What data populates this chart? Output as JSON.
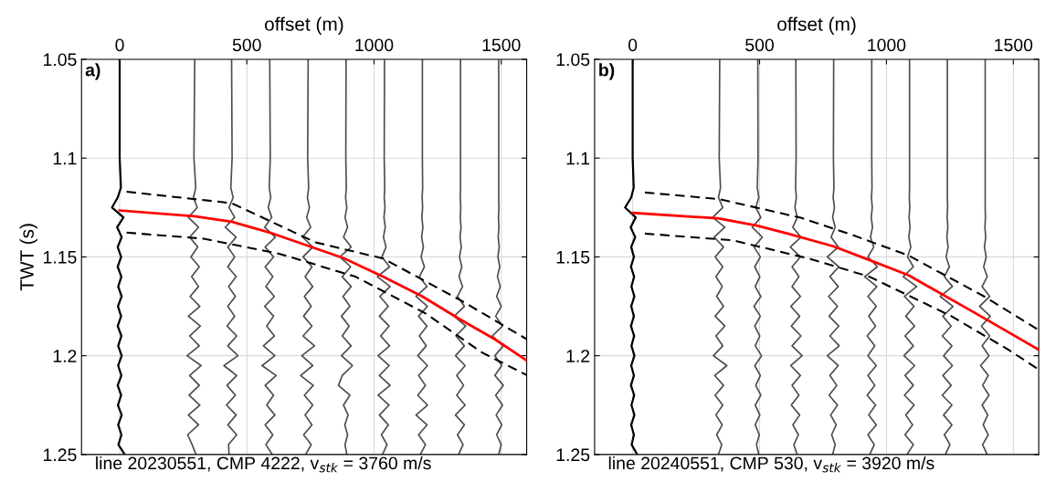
{
  "chart_data": [
    {
      "type": "line",
      "xlabel": "offset (m)",
      "ylabel": "TWT (s)",
      "xlim": [
        -150,
        1600
      ],
      "xticks": [
        0,
        500,
        1000,
        1500
      ],
      "ylim": [
        1.25,
        1.05
      ],
      "yticks": [
        1.05,
        1.1,
        1.15,
        1.2,
        1.25
      ],
      "grid": true,
      "marker": "none",
      "annotations": [
        "a)",
        "line 20230551, CMP 4222, v$_{stk}$ = 3760 m/s"
      ],
      "series": [
        {
          "color": "#000000",
          "x": [
            0,
            0,
            5,
            -8,
            -30,
            15,
            -10,
            8,
            -8,
            6,
            -8,
            7,
            -6,
            8,
            -7,
            6,
            -8,
            7,
            -6,
            8,
            -6,
            7,
            -8,
            6,
            -7,
            8,
            -6,
            7,
            -5,
            20
          ],
          "values": [
            1.05,
            1.1,
            1.115,
            1.12,
            1.125,
            1.13,
            1.135,
            1.14,
            1.145,
            1.15,
            1.155,
            1.16,
            1.165,
            1.17,
            1.175,
            1.18,
            1.185,
            1.19,
            1.195,
            1.2,
            1.205,
            1.21,
            1.215,
            1.22,
            1.225,
            1.23,
            1.235,
            1.24,
            1.245,
            1.25
          ]
        },
        {
          "color": "#4d4d4d",
          "x": [
            295,
            292,
            299,
            290,
            305,
            270,
            310,
            275,
            307,
            280,
            313,
            283,
            310,
            277,
            315,
            270,
            317,
            275,
            313,
            265,
            320,
            275,
            313,
            273,
            315,
            270,
            310,
            267,
            285,
            300
          ],
          "values": [
            1.05,
            1.1,
            1.115,
            1.12,
            1.125,
            1.13,
            1.135,
            1.14,
            1.145,
            1.15,
            1.155,
            1.16,
            1.165,
            1.17,
            1.175,
            1.18,
            1.185,
            1.19,
            1.195,
            1.2,
            1.205,
            1.21,
            1.215,
            1.22,
            1.225,
            1.23,
            1.235,
            1.24,
            1.245,
            1.25
          ]
        },
        {
          "color": "#4d4d4d",
          "x": [
            440,
            442,
            437,
            446,
            430,
            452,
            415,
            458,
            425,
            452,
            425,
            458,
            428,
            455,
            425,
            452,
            422,
            460,
            425,
            465,
            410,
            460,
            422,
            455,
            420,
            458,
            425,
            460,
            428,
            430
          ],
          "values": [
            1.05,
            1.1,
            1.115,
            1.12,
            1.125,
            1.13,
            1.135,
            1.14,
            1.145,
            1.15,
            1.155,
            1.16,
            1.165,
            1.17,
            1.175,
            1.18,
            1.185,
            1.19,
            1.195,
            1.2,
            1.205,
            1.21,
            1.215,
            1.22,
            1.225,
            1.23,
            1.235,
            1.24,
            1.245,
            1.25
          ]
        },
        {
          "color": "#4d4d4d",
          "x": [
            590,
            592,
            588,
            594,
            584,
            598,
            570,
            612,
            572,
            605,
            572,
            602,
            575,
            608,
            570,
            605,
            578,
            608,
            565,
            610,
            560,
            615,
            572,
            605,
            578,
            610,
            572,
            602,
            575,
            600
          ],
          "values": [
            1.05,
            1.1,
            1.115,
            1.12,
            1.125,
            1.13,
            1.135,
            1.14,
            1.145,
            1.15,
            1.155,
            1.16,
            1.165,
            1.17,
            1.175,
            1.18,
            1.185,
            1.19,
            1.195,
            1.2,
            1.205,
            1.21,
            1.215,
            1.22,
            1.225,
            1.23,
            1.235,
            1.24,
            1.245,
            1.25
          ]
        },
        {
          "color": "#4d4d4d",
          "x": [
            741,
            739,
            743,
            738,
            746,
            735,
            751,
            719,
            759,
            721,
            756,
            729,
            759,
            726,
            753,
            723,
            756,
            721,
            766,
            716,
            759,
            711,
            761,
            726,
            759,
            729,
            756,
            723,
            753,
            731
          ],
          "values": [
            1.05,
            1.1,
            1.115,
            1.12,
            1.125,
            1.13,
            1.135,
            1.14,
            1.145,
            1.15,
            1.155,
            1.16,
            1.165,
            1.17,
            1.175,
            1.18,
            1.185,
            1.19,
            1.195,
            1.2,
            1.205,
            1.21,
            1.215,
            1.22,
            1.225,
            1.23,
            1.235,
            1.24,
            1.245,
            1.25
          ]
        },
        {
          "color": "#4d4d4d",
          "x": [
            890,
            889,
            891,
            888,
            893,
            886,
            896,
            880,
            910,
            865,
            908,
            875,
            910,
            878,
            905,
            872,
            902,
            875,
            910,
            872,
            915,
            875,
            860,
            905,
            880,
            898,
            885,
            896,
            886,
            893
          ],
          "values": [
            1.05,
            1.1,
            1.115,
            1.12,
            1.125,
            1.13,
            1.135,
            1.14,
            1.145,
            1.15,
            1.155,
            1.16,
            1.165,
            1.17,
            1.175,
            1.18,
            1.185,
            1.19,
            1.195,
            1.2,
            1.205,
            1.21,
            1.215,
            1.22,
            1.225,
            1.23,
            1.235,
            1.24,
            1.245,
            1.25
          ]
        },
        {
          "color": "#4d4d4d",
          "x": [
            1041,
            1040,
            1042,
            1040,
            1043,
            1039,
            1044,
            1037,
            1047,
            1031,
            1061,
            1013,
            1063,
            1023,
            1056,
            1021,
            1059,
            1026,
            1061,
            1016,
            1059,
            1021,
            1063,
            1016,
            1059,
            1021,
            1056,
            1029,
            1051,
            1033
          ],
          "values": [
            1.05,
            1.1,
            1.115,
            1.12,
            1.125,
            1.13,
            1.135,
            1.14,
            1.145,
            1.15,
            1.155,
            1.16,
            1.165,
            1.17,
            1.175,
            1.18,
            1.185,
            1.19,
            1.195,
            1.2,
            1.205,
            1.21,
            1.215,
            1.22,
            1.225,
            1.23,
            1.235,
            1.24,
            1.245,
            1.25
          ]
        },
        {
          "color": "#4d4d4d",
          "x": [
            1190,
            1190,
            1191,
            1189,
            1191,
            1188,
            1192,
            1187,
            1194,
            1185,
            1198,
            1178,
            1208,
            1165,
            1210,
            1175,
            1208,
            1178,
            1205,
            1172,
            1210,
            1175,
            1202,
            1172,
            1210,
            1165,
            1208,
            1175,
            1202,
            1182
          ],
          "values": [
            1.05,
            1.1,
            1.115,
            1.12,
            1.125,
            1.13,
            1.135,
            1.14,
            1.145,
            1.15,
            1.155,
            1.16,
            1.165,
            1.17,
            1.175,
            1.18,
            1.185,
            1.19,
            1.195,
            1.2,
            1.205,
            1.21,
            1.215,
            1.22,
            1.225,
            1.23,
            1.235,
            1.24,
            1.245,
            1.25
          ]
        },
        {
          "color": "#4d4d4d",
          "x": [
            1340,
            1340,
            1340,
            1339,
            1341,
            1339,
            1342,
            1338,
            1343,
            1336,
            1345,
            1334,
            1348,
            1328,
            1355,
            1315,
            1360,
            1322,
            1355,
            1320,
            1358,
            1325,
            1352,
            1325,
            1358,
            1320,
            1355,
            1328,
            1350,
            1332
          ],
          "values": [
            1.05,
            1.1,
            1.115,
            1.12,
            1.125,
            1.13,
            1.135,
            1.14,
            1.145,
            1.15,
            1.155,
            1.16,
            1.165,
            1.17,
            1.175,
            1.18,
            1.185,
            1.19,
            1.195,
            1.2,
            1.205,
            1.21,
            1.215,
            1.22,
            1.225,
            1.23,
            1.235,
            1.24,
            1.245,
            1.25
          ]
        },
        {
          "color": "#4d4d4d",
          "x": [
            1490,
            1490,
            1490,
            1490,
            1491,
            1489,
            1491,
            1488,
            1492,
            1487,
            1494,
            1485,
            1496,
            1482,
            1500,
            1478,
            1505,
            1465,
            1508,
            1475,
            1502,
            1475,
            1508,
            1478,
            1505,
            1480,
            1502,
            1482,
            1500,
            1490
          ],
          "values": [
            1.05,
            1.1,
            1.115,
            1.12,
            1.125,
            1.13,
            1.135,
            1.14,
            1.145,
            1.15,
            1.155,
            1.16,
            1.165,
            1.17,
            1.175,
            1.18,
            1.185,
            1.19,
            1.195,
            1.2,
            1.205,
            1.21,
            1.215,
            1.22,
            1.225,
            1.23,
            1.235,
            1.24,
            1.245,
            1.25
          ]
        },
        {
          "color": "#000000",
          "line_style": "dashed",
          "x": [
            27,
            440,
            771,
            1036,
            1345,
            1600
          ],
          "values": [
            1.117,
            1.1228,
            1.1427,
            1.1508,
            1.1723,
            1.1916
          ]
        },
        {
          "color": "#000000",
          "line_style": "dashed",
          "x": [
            27,
            331,
            630,
            927,
            1201,
            1426,
            1600
          ],
          "values": [
            1.1377,
            1.1408,
            1.1485,
            1.16,
            1.1785,
            1.1985,
            1.2098
          ]
        },
        {
          "color": "#ff0000",
          "x": [
            0,
            293,
            440,
            590,
            880,
            1035,
            1190,
            1330,
            1474,
            1600
          ],
          "values": [
            1.1265,
            1.1294,
            1.1322,
            1.1377,
            1.1506,
            1.16,
            1.17,
            1.181,
            1.1916,
            1.2024
          ]
        }
      ]
    },
    {
      "type": "line",
      "xlabel": "offset (m)",
      "xlim": [
        -150,
        1600
      ],
      "xticks": [
        0,
        500,
        1000,
        1500
      ],
      "ylim": [
        1.25,
        1.05
      ],
      "yticks": [
        1.05,
        1.1,
        1.15,
        1.2,
        1.25
      ],
      "grid": true,
      "marker": "none",
      "annotations": [
        "b)",
        "line 20240551, CMP 530, v$_{stk}$ = 3920 m/s"
      ],
      "series": [
        {
          "color": "#000000",
          "x": [
            0,
            0,
            4,
            -6,
            -30,
            12,
            -8,
            10,
            -6,
            5,
            -7,
            6,
            -5,
            7,
            -6,
            5,
            -7,
            6,
            -5,
            7,
            -6,
            5,
            -7,
            6,
            -5,
            7,
            -6,
            5,
            -4,
            18
          ],
          "values": [
            1.05,
            1.1,
            1.115,
            1.12,
            1.125,
            1.13,
            1.135,
            1.14,
            1.145,
            1.15,
            1.155,
            1.16,
            1.165,
            1.17,
            1.175,
            1.18,
            1.185,
            1.19,
            1.195,
            1.2,
            1.205,
            1.21,
            1.215,
            1.22,
            1.225,
            1.23,
            1.235,
            1.24,
            1.245,
            1.25
          ]
        },
        {
          "color": "#4d4d4d",
          "x": [
            343,
            341,
            346,
            338,
            355,
            315,
            363,
            321,
            358,
            325,
            355,
            328,
            353,
            331,
            358,
            325,
            363,
            328,
            355,
            318,
            371,
            323,
            358,
            325,
            355,
            328,
            353,
            331,
            351,
            338
          ],
          "values": [
            1.05,
            1.1,
            1.115,
            1.12,
            1.125,
            1.13,
            1.135,
            1.14,
            1.145,
            1.15,
            1.155,
            1.16,
            1.165,
            1.17,
            1.175,
            1.18,
            1.185,
            1.19,
            1.195,
            1.2,
            1.205,
            1.21,
            1.215,
            1.22,
            1.225,
            1.23,
            1.235,
            1.24,
            1.245,
            1.25
          ]
        },
        {
          "color": "#4d4d4d",
          "x": [
            493,
            494,
            491,
            497,
            485,
            505,
            471,
            511,
            478,
            503,
            481,
            501,
            483,
            505,
            478,
            503,
            481,
            501,
            483,
            508,
            481,
            503,
            485,
            505,
            483,
            501,
            483,
            499,
            488,
            497
          ],
          "values": [
            1.05,
            1.1,
            1.115,
            1.12,
            1.125,
            1.13,
            1.135,
            1.14,
            1.145,
            1.15,
            1.155,
            1.16,
            1.165,
            1.17,
            1.175,
            1.18,
            1.185,
            1.19,
            1.195,
            1.2,
            1.205,
            1.21,
            1.215,
            1.22,
            1.225,
            1.23,
            1.235,
            1.24,
            1.245,
            1.25
          ]
        },
        {
          "color": "#4d4d4d",
          "x": [
            643,
            644,
            642,
            645,
            639,
            649,
            631,
            663,
            621,
            661,
            628,
            655,
            628,
            661,
            623,
            658,
            625,
            663,
            628,
            668,
            623,
            661,
            628,
            655,
            625,
            658,
            631,
            653,
            635,
            648
          ],
          "values": [
            1.05,
            1.1,
            1.115,
            1.12,
            1.125,
            1.13,
            1.135,
            1.14,
            1.145,
            1.15,
            1.155,
            1.16,
            1.165,
            1.17,
            1.175,
            1.18,
            1.185,
            1.19,
            1.195,
            1.2,
            1.205,
            1.21,
            1.215,
            1.22,
            1.225,
            1.23,
            1.235,
            1.24,
            1.245,
            1.25
          ]
        },
        {
          "color": "#4d4d4d",
          "x": [
            792,
            791,
            793,
            790,
            795,
            788,
            798,
            782,
            810,
            767,
            812,
            777,
            810,
            772,
            807,
            774,
            812,
            777,
            814,
            767,
            810,
            777,
            804,
            774,
            807,
            780,
            802,
            784,
            798,
            788
          ],
          "values": [
            1.05,
            1.1,
            1.115,
            1.12,
            1.125,
            1.13,
            1.135,
            1.14,
            1.145,
            1.15,
            1.155,
            1.16,
            1.165,
            1.17,
            1.175,
            1.18,
            1.185,
            1.19,
            1.195,
            1.2,
            1.205,
            1.21,
            1.215,
            1.22,
            1.225,
            1.23,
            1.235,
            1.24,
            1.245,
            1.25
          ]
        },
        {
          "color": "#4d4d4d",
          "x": [
            942,
            942,
            943,
            941,
            944,
            940,
            945,
            937,
            950,
            927,
            964,
            914,
            962,
            927,
            960,
            930,
            957,
            924,
            954,
            927,
            960,
            927,
            954,
            924,
            957,
            930,
            960,
            927,
            952,
            934
          ],
          "values": [
            1.05,
            1.1,
            1.115,
            1.12,
            1.125,
            1.13,
            1.135,
            1.14,
            1.145,
            1.15,
            1.155,
            1.16,
            1.165,
            1.17,
            1.175,
            1.18,
            1.185,
            1.19,
            1.195,
            1.2,
            1.205,
            1.21,
            1.215,
            1.22,
            1.225,
            1.23,
            1.235,
            1.24,
            1.245,
            1.25
          ]
        },
        {
          "color": "#4d4d4d",
          "x": [
            1091,
            1091,
            1091,
            1090,
            1092,
            1089,
            1093,
            1088,
            1096,
            1083,
            1106,
            1066,
            1119,
            1071,
            1109,
            1076,
            1111,
            1073,
            1106,
            1069,
            1111,
            1073,
            1106,
            1071,
            1109,
            1076,
            1103,
            1073,
            1106,
            1081
          ],
          "values": [
            1.05,
            1.1,
            1.115,
            1.12,
            1.125,
            1.13,
            1.135,
            1.14,
            1.145,
            1.15,
            1.155,
            1.16,
            1.165,
            1.17,
            1.175,
            1.18,
            1.185,
            1.19,
            1.195,
            1.2,
            1.205,
            1.21,
            1.215,
            1.22,
            1.225,
            1.23,
            1.235,
            1.24,
            1.245,
            1.25
          ]
        },
        {
          "color": "#4d4d4d",
          "x": [
            1240,
            1240,
            1240,
            1240,
            1241,
            1239,
            1242,
            1238,
            1243,
            1235,
            1248,
            1228,
            1260,
            1212,
            1262,
            1222,
            1255,
            1220,
            1258,
            1225,
            1260,
            1222,
            1255,
            1220,
            1258,
            1225,
            1258,
            1228,
            1250,
            1232
          ],
          "values": [
            1.05,
            1.1,
            1.115,
            1.12,
            1.125,
            1.13,
            1.135,
            1.14,
            1.145,
            1.15,
            1.155,
            1.16,
            1.165,
            1.17,
            1.175,
            1.18,
            1.185,
            1.19,
            1.195,
            1.2,
            1.205,
            1.21,
            1.215,
            1.22,
            1.225,
            1.23,
            1.235,
            1.24,
            1.245,
            1.25
          ]
        },
        {
          "color": "#4d4d4d",
          "x": [
            1389,
            1389,
            1389,
            1389,
            1389,
            1390,
            1388,
            1391,
            1386,
            1393,
            1383,
            1397,
            1377,
            1407,
            1367,
            1409,
            1374,
            1407,
            1377,
            1404,
            1371,
            1401,
            1379,
            1404,
            1377,
            1399,
            1381,
            1401,
            1379,
            1397
          ],
          "values": [
            1.05,
            1.1,
            1.115,
            1.12,
            1.125,
            1.13,
            1.135,
            1.14,
            1.145,
            1.15,
            1.155,
            1.16,
            1.165,
            1.17,
            1.175,
            1.18,
            1.185,
            1.19,
            1.195,
            1.2,
            1.205,
            1.21,
            1.215,
            1.22,
            1.225,
            1.23,
            1.235,
            1.24,
            1.245,
            1.25
          ]
        },
        {
          "color": "#000000",
          "line_style": "dashed",
          "x": [
            48,
            343,
            663,
            872,
            1087,
            1385,
            1600
          ],
          "values": [
            1.1174,
            1.1208,
            1.1302,
            1.1392,
            1.1493,
            1.17,
            1.187
          ]
        },
        {
          "color": "#000000",
          "line_style": "dashed",
          "x": [
            48,
            394,
            693,
            933,
            1256,
            1481,
            1600
          ],
          "values": [
            1.1382,
            1.1416,
            1.1508,
            1.16,
            1.18,
            1.197,
            1.207
          ]
        },
        {
          "color": "#ff0000",
          "x": [
            0,
            335,
            489,
            611,
            790,
            933,
            1087,
            1362,
            1600
          ],
          "values": [
            1.1277,
            1.1305,
            1.1342,
            1.1382,
            1.1446,
            1.1516,
            1.1593,
            1.1793,
            1.197
          ]
        }
      ]
    }
  ]
}
